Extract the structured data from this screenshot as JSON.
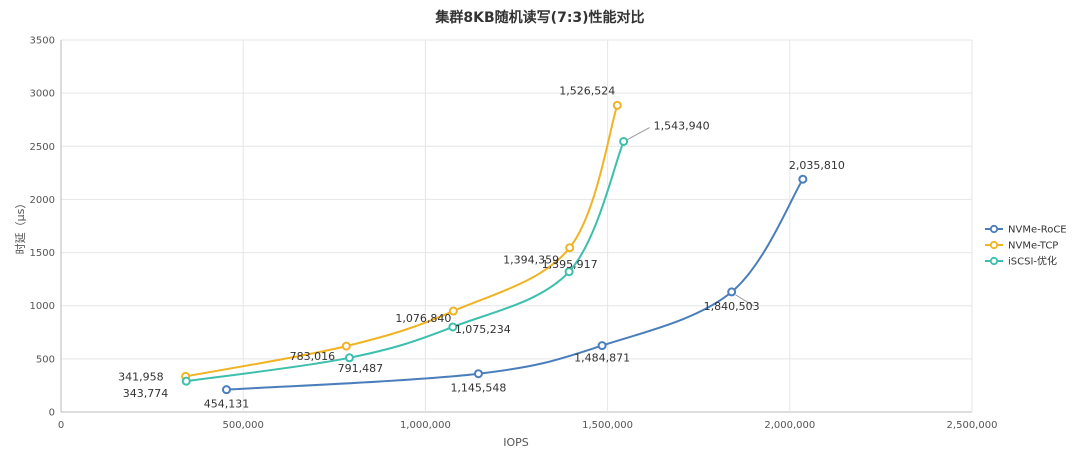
{
  "chart_data": {
    "type": "line",
    "title": "集群8KB随机读写(7:3)性能对比",
    "xlabel": "IOPS",
    "ylabel": "时延（μs）",
    "xlim": [
      0,
      2500000
    ],
    "ylim": [
      0,
      3500
    ],
    "x_ticks": [
      0,
      500000,
      1000000,
      1500000,
      2000000,
      2500000
    ],
    "x_tick_labels": [
      "0",
      "500,000",
      "1,000,000",
      "1,500,000",
      "2,000,000",
      "2,500,000"
    ],
    "y_ticks": [
      0,
      500,
      1000,
      1500,
      2000,
      2500,
      3000,
      3500
    ],
    "y_tick_labels": [
      "0",
      "500",
      "1000",
      "1500",
      "2000",
      "2500",
      "3000",
      "3500"
    ],
    "grid": true,
    "legend_position": "right",
    "series": [
      {
        "name": "NVMe-RoCE",
        "color": "#4a7ebb",
        "x": [
          454131,
          1145548,
          1484871,
          1840503,
          2035810
        ],
        "y": [
          210,
          360,
          625,
          1130,
          2190
        ],
        "labels": [
          "454,131",
          "1,145,548",
          "1,484,871",
          "1,840,503",
          "2,035,810"
        ]
      },
      {
        "name": "NVMe-TCP",
        "color": "#f0b323",
        "x": [
          341958,
          783016,
          1076840,
          1395917,
          1526524
        ],
        "y": [
          335,
          620,
          950,
          1545,
          2885
        ],
        "labels": [
          "341,958",
          "783,016",
          "1,076,840",
          "1,395,917",
          "1,526,524"
        ]
      },
      {
        "name": "iSCSI-优化",
        "color": "#3dbfae",
        "x": [
          343774,
          791487,
          1075234,
          1394359,
          1543940
        ],
        "y": [
          290,
          510,
          800,
          1320,
          2545
        ],
        "labels": [
          "343,774",
          "791,487",
          "1,075,234",
          "1,394,359",
          "1,543,940"
        ]
      }
    ]
  }
}
